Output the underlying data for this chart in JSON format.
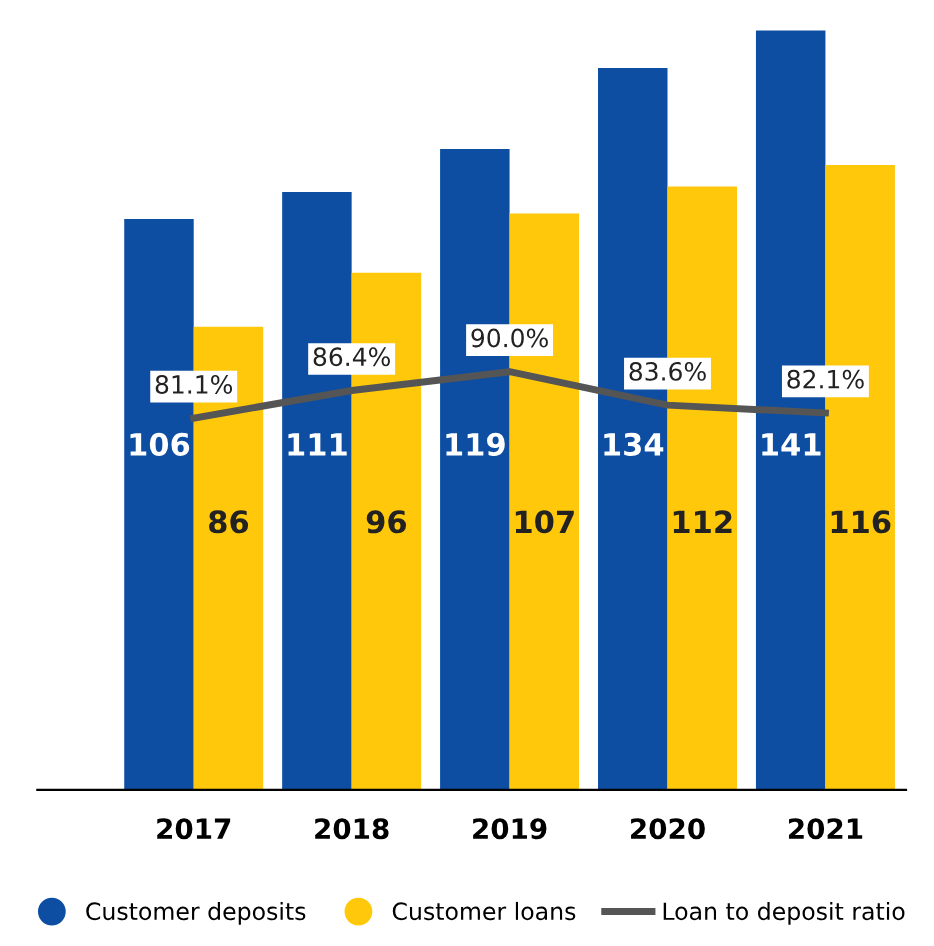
{
  "chart_data": {
    "type": "bar",
    "categories": [
      "2017",
      "2018",
      "2019",
      "2020",
      "2021"
    ],
    "series": [
      {
        "name": "Customer deposits",
        "color": "#0d4ea3",
        "values": [
          106,
          111,
          119,
          134,
          141
        ],
        "value_labels": [
          "106",
          "111",
          "119",
          "134",
          "141"
        ]
      },
      {
        "name": "Customer loans",
        "color": "#ffc80a",
        "values": [
          86,
          96,
          107,
          112,
          116
        ],
        "value_labels": [
          "86",
          "96",
          "107",
          "112",
          "116"
        ]
      },
      {
        "name": "Loan to deposit ratio",
        "type": "line",
        "axis": "y2",
        "color": "#555555",
        "values": [
          81.1,
          86.4,
          90.0,
          83.6,
          82.1
        ],
        "value_labels": [
          "81.1%",
          "86.4%",
          "90.0%",
          "83.6%",
          "82.1%"
        ]
      }
    ],
    "grid": false,
    "legend": "bottom",
    "marker": "none",
    "line_style": "solid",
    "tick_labels": "x"
  }
}
